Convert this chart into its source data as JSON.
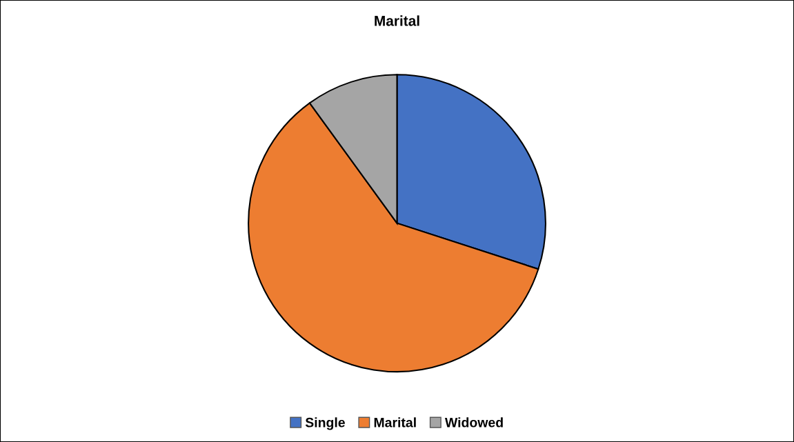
{
  "chart_data": {
    "type": "pie",
    "title": "Marital",
    "categories": [
      "Single",
      "Marital",
      "Widowed"
    ],
    "values": [
      30,
      60,
      10
    ],
    "colors": [
      "#4472c4",
      "#ed7d31",
      "#a5a5a5"
    ],
    "legend": "bottom"
  }
}
